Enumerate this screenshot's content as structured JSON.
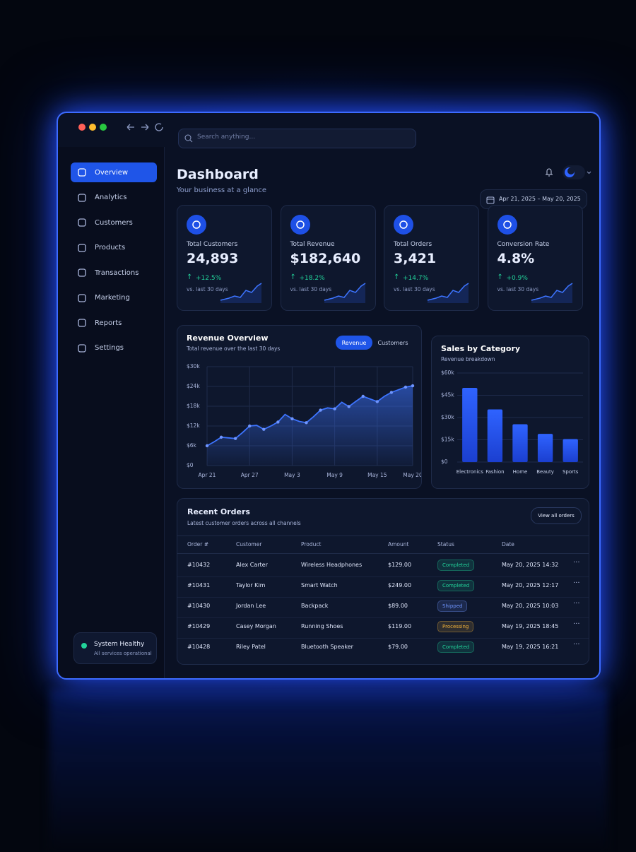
{
  "window": {
    "search_placeholder": "Search anything..."
  },
  "sidebar": {
    "nav": [
      "Overview",
      "Analytics",
      "Customers",
      "Products",
      "Transactions",
      "Marketing",
      "Reports",
      "Settings"
    ],
    "status": {
      "title": "System Healthy",
      "subtitle": "All services operational"
    }
  },
  "header": {
    "title": "Dashboard",
    "subtitle": "Your business at a glance",
    "date_range": "Apr 21, 2025 – May 20, 2025"
  },
  "kpis": [
    {
      "label": "Total Customers",
      "value": "24,893",
      "change": "+12.5%",
      "note": "vs. last 30 days"
    },
    {
      "label": "Total Revenue",
      "value": "$182,640",
      "change": "+18.2%",
      "note": "vs. last 30 days"
    },
    {
      "label": "Total Orders",
      "value": "3,421",
      "change": "+14.7%",
      "note": "vs. last 30 days"
    },
    {
      "label": "Conversion Rate",
      "value": "4.8%",
      "change": "+0.9%",
      "note": "vs. last 30 days"
    }
  ],
  "revenue_chart": {
    "type": "area",
    "title": "Revenue Overview",
    "subtitle": "Total revenue over the last 30 days",
    "tabs": [
      "Revenue",
      "Customers"
    ],
    "categories": [
      "Apr 21",
      null,
      null,
      null,
      null,
      null,
      "Apr 27",
      null,
      null,
      null,
      null,
      null,
      "May 3",
      null,
      null,
      null,
      null,
      null,
      "May 9",
      null,
      null,
      null,
      null,
      null,
      "May 15",
      null,
      null,
      null,
      null,
      "May 20"
    ],
    "values": [
      6000,
      7200,
      8600,
      8400,
      8200,
      10000,
      12000,
      12200,
      11000,
      12000,
      13200,
      15500,
      14200,
      13400,
      13000,
      14800,
      16800,
      17500,
      17200,
      19200,
      17900,
      19500,
      21000,
      20200,
      19400,
      21000,
      22200,
      23000,
      23800,
      24200
    ],
    "color": "#3d74ff",
    "ylim": [
      0,
      30000
    ],
    "yticks": [
      {
        "value": 0,
        "label": "$0"
      },
      {
        "value": 6000,
        "label": "$6k"
      },
      {
        "value": 12000,
        "label": "$12k"
      },
      {
        "value": 18000,
        "label": "$18k"
      },
      {
        "value": 24000,
        "label": "$24k"
      },
      {
        "value": 30000,
        "label": "$30k"
      }
    ],
    "grid": true
  },
  "category_chart": {
    "type": "bar",
    "title": "Sales by Category",
    "subtitle": "Revenue breakdown",
    "categories": [
      "Electronics",
      "Fashion",
      "Home",
      "Beauty",
      "Sports"
    ],
    "values": [
      50000,
      35500,
      25500,
      19000,
      15500
    ],
    "color": "#2f63ff",
    "ylim": [
      0,
      60000
    ],
    "yticks": [
      {
        "value": 0,
        "label": "$0"
      },
      {
        "value": 15000,
        "label": "$15k"
      },
      {
        "value": 30000,
        "label": "$30k"
      },
      {
        "value": 45000,
        "label": "$45k"
      },
      {
        "value": 60000,
        "label": "$60k"
      }
    ],
    "grid": true
  },
  "orders": {
    "title": "Recent Orders",
    "subtitle": "Latest customer orders across all channels",
    "button": "View all orders",
    "columns": [
      "Order #",
      "Customer",
      "Product",
      "Amount",
      "Status",
      "Date"
    ],
    "rows": [
      [
        "#10432",
        "Alex Carter",
        "Wireless Headphones",
        "$129.00",
        {
          "label": "Completed",
          "color": "#22d39a"
        },
        "May 20, 2025 14:32"
      ],
      [
        "#10431",
        "Taylor Kim",
        "Smart Watch",
        "$249.00",
        {
          "label": "Completed",
          "color": "#22d39a"
        },
        "May 20, 2025 12:17"
      ],
      [
        "#10430",
        "Jordan Lee",
        "Backpack",
        "$89.00",
        {
          "label": "Shipped",
          "color": "#6f95ff"
        },
        "May 20, 2025 10:03"
      ],
      [
        "#10429",
        "Casey Morgan",
        "Running Shoes",
        "$119.00",
        {
          "label": "Processing",
          "color": "#f2b23a"
        },
        "May 19, 2025 18:45"
      ],
      [
        "#10428",
        "Riley Patel",
        "Bluetooth Speaker",
        "$79.00",
        {
          "label": "Completed",
          "color": "#22d39a"
        },
        "May 19, 2025 16:21"
      ]
    ]
  }
}
